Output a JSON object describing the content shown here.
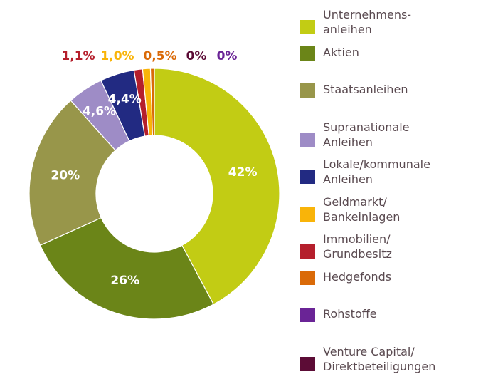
{
  "chart_data": {
    "type": "pie",
    "variant": "donut",
    "title": "",
    "series": [
      {
        "name": "Unternehmens-\nanleihen",
        "value": 42,
        "label": "42%",
        "color": "#c2cc14"
      },
      {
        "name": "Aktien",
        "value": 26,
        "label": "26%",
        "color": "#6b8518"
      },
      {
        "name": "Staatsanleihen",
        "value": 20,
        "label": "20%",
        "color": "#98964a"
      },
      {
        "name": "Supranationale\nAnleihen",
        "value": 4.6,
        "label": "4,6%",
        "color": "#9e8cc6"
      },
      {
        "name": "Lokale/kommunale\nAnleihen",
        "value": 4.4,
        "label": "4,4%",
        "color": "#222a82"
      },
      {
        "name": "Geldmarkt/\nBankeinlagen",
        "value": 1.0,
        "label": "1,0%",
        "color": "#f9b409"
      },
      {
        "name": "Immobilien/\nGrundbesitz",
        "value": 1.1,
        "label": "1,1%",
        "color": "#b51f2c"
      },
      {
        "name": "Hedgefonds",
        "value": 0.5,
        "label": "0,5%",
        "color": "#da6a08"
      },
      {
        "name": "Rohstoffe",
        "value": 0,
        "label": "0%",
        "color": "#6a2496"
      },
      {
        "name": "Venture Capital/\nDirektbeteiligungen",
        "value": 0,
        "label": "0%",
        "color": "#5c0c36"
      }
    ],
    "slice_order": [
      "Unternehmens-\nanleihen",
      "Aktien",
      "Staatsanleihen",
      "Supranationale\nAnleihen",
      "Lokale/kommunale\nAnleihen",
      "Immobilien/\nGrundbesitz",
      "Geldmarkt/\nBankeinlagen",
      "Hedgefonds"
    ],
    "outside_labels": [
      {
        "text": "1,1%",
        "color": "#b51f2c"
      },
      {
        "text": "1,0%",
        "color": "#f9b409"
      },
      {
        "text": "0,5%",
        "color": "#da6a08"
      },
      {
        "text": "0%",
        "color": "#5c0c36"
      },
      {
        "text": "0%",
        "color": "#6a2496"
      }
    ],
    "legend_position": "right"
  }
}
